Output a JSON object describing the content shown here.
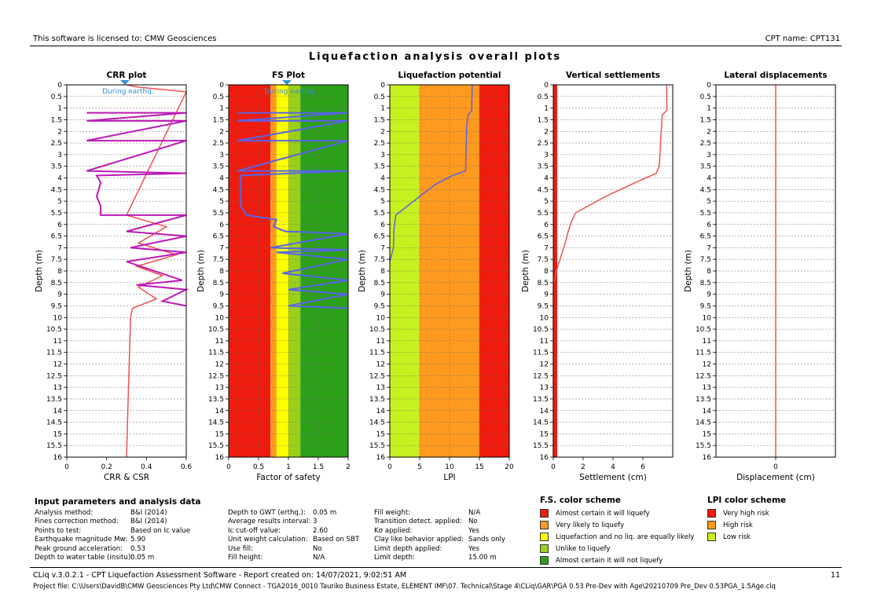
{
  "header": {
    "license": "This software is licensed to: CMW Geosciences",
    "cpt_name": "CPT name: CPT131"
  },
  "main_title": "Liquefaction analysis overall plots",
  "colors": {
    "red": "#ee1c0e",
    "orange": "#ff9a1e",
    "yellow": "#ffff00",
    "light_green": "#9ad01a",
    "green": "#2da01a",
    "lime": "#c6f01e",
    "csr_line": "#f25050",
    "crr_line": "#bb1ab6",
    "fs_line": "#5a63e8"
  },
  "chart_data": [
    {
      "type": "line",
      "title": "CRR plot",
      "xlabel": "CRR & CSR",
      "ylabel": "Depth (m)",
      "xlim": [
        0,
        0.6
      ],
      "ylim": [
        0,
        16
      ],
      "x_ticks": [
        "0",
        "0.2",
        "0.4",
        "0.6"
      ],
      "annotation": "During earthq.",
      "series": [
        {
          "name": "CSR",
          "color": "#f25050",
          "points": [
            [
              0.3,
              0
            ],
            [
              0.36,
              0.1
            ],
            [
              0.6,
              0.3
            ],
            [
              0.3,
              5.6
            ],
            [
              0.5,
              6.1
            ],
            [
              0.36,
              6.8
            ],
            [
              0.55,
              7.3
            ],
            [
              0.35,
              7.8
            ],
            [
              0.48,
              8.2
            ],
            [
              0.36,
              8.7
            ],
            [
              0.45,
              9.2
            ],
            [
              0.33,
              9.6
            ],
            [
              0.32,
              10
            ],
            [
              0.31,
              13
            ],
            [
              0.3,
              16
            ]
          ]
        },
        {
          "name": "CRR",
          "color": "#bb1ab6",
          "points": [
            [
              0.1,
              1.2
            ],
            [
              0.6,
              1.2
            ],
            [
              0.1,
              1.55
            ],
            [
              0.6,
              1.55
            ],
            [
              0.1,
              2.4
            ],
            [
              0.6,
              2.4
            ],
            [
              0.1,
              3.7
            ],
            [
              0.6,
              3.8
            ],
            [
              0.15,
              3.9
            ],
            [
              0.17,
              4.2
            ],
            [
              0.15,
              4.8
            ],
            [
              0.17,
              5.2
            ],
            [
              0.17,
              5.6
            ],
            [
              0.6,
              5.6
            ],
            [
              0.3,
              6.3
            ],
            [
              0.6,
              6.5
            ],
            [
              0.32,
              7
            ],
            [
              0.6,
              7.2
            ],
            [
              0.3,
              7.6
            ],
            [
              0.58,
              8.4
            ],
            [
              0.35,
              8.6
            ],
            [
              0.6,
              8.8
            ],
            [
              0.48,
              9.3
            ],
            [
              0.6,
              9.5
            ]
          ]
        }
      ]
    },
    {
      "type": "line",
      "title": "FS Plot",
      "xlabel": "Factor of safety",
      "ylabel": "Depth (m)",
      "xlim": [
        0,
        2
      ],
      "ylim": [
        0,
        16
      ],
      "x_ticks": [
        "0",
        "0.5",
        "1",
        "1.5",
        "2"
      ],
      "annotation": "During earthq.",
      "bands": [
        [
          0,
          0.7,
          "red"
        ],
        [
          0.7,
          0.8,
          "orange"
        ],
        [
          0.8,
          1.0,
          "yellow"
        ],
        [
          1.0,
          1.2,
          "light_green"
        ],
        [
          1.2,
          2.0,
          "green"
        ]
      ],
      "series": [
        {
          "name": "FS",
          "color": "#5a63e8",
          "points": [
            [
              0.15,
              1.2
            ],
            [
              2,
              1.2
            ],
            [
              0.15,
              1.55
            ],
            [
              2,
              1.55
            ],
            [
              0.15,
              2.4
            ],
            [
              2,
              2.4
            ],
            [
              0.15,
              3.7
            ],
            [
              2,
              3.7
            ],
            [
              0.2,
              3.9
            ],
            [
              0.2,
              5.2
            ],
            [
              0.3,
              5.6
            ],
            [
              0.8,
              5.8
            ],
            [
              0.75,
              6.1
            ],
            [
              0.95,
              6.3
            ],
            [
              2,
              6.4
            ],
            [
              0.7,
              7.0
            ],
            [
              2,
              7.1
            ],
            [
              0.8,
              7.2
            ],
            [
              2,
              7.5
            ],
            [
              0.9,
              8.1
            ],
            [
              2,
              8.4
            ],
            [
              1.0,
              8.8
            ],
            [
              2,
              9.0
            ],
            [
              1.0,
              9.5
            ],
            [
              2,
              9.6
            ]
          ]
        }
      ]
    },
    {
      "type": "line",
      "title": "Liquefaction potential",
      "xlabel": "LPI",
      "ylabel": "Depth (m)",
      "xlim": [
        0,
        20
      ],
      "ylim": [
        0,
        16
      ],
      "x_ticks": [
        "0",
        "5",
        "10",
        "15",
        "20"
      ],
      "bands": [
        [
          0,
          5,
          "lime"
        ],
        [
          5,
          15,
          "orange"
        ],
        [
          15,
          20,
          "red"
        ]
      ],
      "series": [
        {
          "name": "LPI",
          "color": "#5a63e8",
          "points": [
            [
              13.8,
              0
            ],
            [
              13.7,
              1.1
            ],
            [
              13.1,
              1.3
            ],
            [
              12.9,
              1.7
            ],
            [
              12.8,
              2.5
            ],
            [
              12.7,
              3.5
            ],
            [
              12.7,
              3.7
            ],
            [
              10.5,
              3.9
            ],
            [
              7.5,
              4.3
            ],
            [
              4,
              5
            ],
            [
              1,
              5.6
            ],
            [
              0.7,
              6.2
            ],
            [
              0.6,
              7
            ],
            [
              0,
              7.6
            ]
          ]
        }
      ]
    },
    {
      "type": "line",
      "title": "Vertical settlements",
      "xlabel": "Settlement (cm)",
      "ylabel": "Depth (m)",
      "xlim": [
        0,
        8
      ],
      "ylim": [
        0,
        16
      ],
      "x_ticks": [
        "0",
        "2",
        "4",
        "6"
      ],
      "series": [
        {
          "name": "Settlement",
          "color": "#f25050",
          "points": [
            [
              7.6,
              0
            ],
            [
              7.6,
              1.1
            ],
            [
              7.3,
              1.3
            ],
            [
              7.2,
              2.3
            ],
            [
              7.1,
              3.5
            ],
            [
              6.9,
              3.8
            ],
            [
              5.5,
              4.2
            ],
            [
              3.5,
              4.8
            ],
            [
              1.5,
              5.5
            ],
            [
              1.2,
              5.9
            ],
            [
              1.0,
              6.3
            ],
            [
              0.8,
              6.8
            ],
            [
              0.6,
              7.2
            ],
            [
              0.3,
              7.8
            ],
            [
              0.1,
              8.3
            ],
            [
              0,
              8.6
            ],
            [
              0,
              16
            ]
          ]
        }
      ],
      "left_band": "red"
    },
    {
      "type": "line",
      "title": "Lateral displacements",
      "xlabel": "Displacement (cm)",
      "ylabel": "Depth (m)",
      "xlim": [
        -1,
        1
      ],
      "ylim": [
        0,
        16
      ],
      "x_ticks": [
        "0"
      ],
      "series": [
        {
          "name": "Displacement",
          "color": "#f25050",
          "points": [
            [
              0,
              0
            ],
            [
              0,
              16
            ]
          ]
        }
      ]
    }
  ],
  "params": {
    "title": "Input parameters and analysis data",
    "col1_labels": [
      "Analysis method:",
      "Fines correction method:",
      "Points to test:",
      "Earthquake magnitude Mw:",
      "Peak ground acceleration:",
      "Depth to water table (insitu):"
    ],
    "col1_values": [
      "B&I (2014)",
      "B&I (2014)",
      "Based on Ic value",
      "5.90",
      "0.53",
      "0.05 m"
    ],
    "col2_labels": [
      "Depth to GWT (erthq.):",
      "Average results interval:",
      "Ic cut-off value:",
      "Unit weight calculation:",
      "Use fill:",
      "Fill height:"
    ],
    "col2_values": [
      "0.05 m",
      "3",
      "2.60",
      "Based on SBT",
      "No",
      "N/A"
    ],
    "col3_labels": [
      "Fill weight:",
      "Transition detect. applied:",
      "Kσ applied:",
      "Clay like behavior applied:",
      "Limit depth applied:",
      "Limit depth:"
    ],
    "col3_values": [
      "N/A",
      "No",
      "Yes",
      "Sands only",
      "Yes",
      "15.00 m"
    ]
  },
  "fs_legend": {
    "title": "F.S. color scheme",
    "items": [
      "Almost certain it will liquefy",
      "Very likely to liquefy",
      "Liquefaction and no liq. are equally likely",
      "Unlike to liquefy",
      "Almost certain it will not liquefy"
    ]
  },
  "lpi_legend": {
    "title": "LPI color scheme",
    "items": [
      "Very high risk",
      "High risk",
      "Low risk"
    ]
  },
  "footer": {
    "line1": "CLiq v.3.0.2.1 - CPT Liquefaction Assessment Software - Report created on: 14/07/2021, 9:02:51 AM",
    "page": "11",
    "line2": "Project file: C:\\Users\\DavidB\\CMW Geosciences Pty Ltd\\CMW Connect - TGA2016_0010 Tauriko Business Estate, ELEMENT IMF\\07. Technical\\Stage 4\\CLiq\\GAR\\PGA 0.53 Pre-Dev with Age\\20210709 Pre_Dev 0.53PGA_1.5Age.clq"
  }
}
